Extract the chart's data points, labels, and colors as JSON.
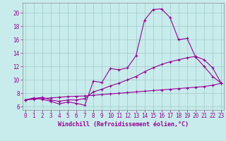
{
  "line1_x": [
    0,
    1,
    2,
    3,
    4,
    5,
    6,
    7,
    8,
    9,
    10,
    11,
    12,
    13,
    14,
    15,
    16,
    17,
    18,
    19,
    20,
    21,
    22,
    23
  ],
  "line1_y": [
    7.0,
    7.3,
    7.1,
    6.8,
    6.4,
    6.7,
    6.5,
    6.2,
    9.8,
    9.6,
    11.7,
    11.5,
    11.8,
    13.6,
    18.9,
    20.5,
    20.6,
    19.3,
    16.0,
    16.2,
    13.4,
    12.0,
    10.5,
    9.5
  ],
  "line2_x": [
    0,
    1,
    2,
    3,
    4,
    5,
    6,
    7,
    8,
    9,
    10,
    11,
    12,
    13,
    14,
    15,
    16,
    17,
    18,
    19,
    20,
    21,
    22,
    23
  ],
  "line2_y": [
    7.0,
    7.2,
    7.4,
    7.0,
    6.8,
    7.0,
    7.0,
    7.2,
    8.2,
    8.6,
    9.1,
    9.5,
    10.0,
    10.5,
    11.2,
    11.8,
    12.3,
    12.7,
    13.0,
    13.3,
    13.5,
    13.0,
    11.8,
    9.5
  ],
  "line3_x": [
    0,
    1,
    2,
    3,
    4,
    5,
    6,
    7,
    8,
    9,
    10,
    11,
    12,
    13,
    14,
    15,
    16,
    17,
    18,
    19,
    20,
    21,
    22,
    23
  ],
  "line3_y": [
    7.0,
    7.1,
    7.2,
    7.3,
    7.4,
    7.5,
    7.55,
    7.6,
    7.7,
    7.8,
    7.9,
    8.0,
    8.1,
    8.2,
    8.3,
    8.4,
    8.5,
    8.6,
    8.7,
    8.8,
    8.9,
    9.0,
    9.2,
    9.5
  ],
  "color": "#990099",
  "bg_color": "#c8ecec",
  "grid_color": "#a0c8c8",
  "marker": "+",
  "xlabel": "Windchill (Refroidissement éolien,°C)",
  "xlim": [
    -0.3,
    23.3
  ],
  "ylim": [
    5.5,
    21.5
  ],
  "xticks": [
    0,
    1,
    2,
    3,
    4,
    5,
    6,
    7,
    8,
    9,
    10,
    11,
    12,
    13,
    14,
    15,
    16,
    17,
    18,
    19,
    20,
    21,
    22,
    23
  ],
  "yticks": [
    6,
    8,
    10,
    12,
    14,
    16,
    18,
    20
  ],
  "fontsize_tick": 5.5,
  "fontsize_label": 6.0
}
